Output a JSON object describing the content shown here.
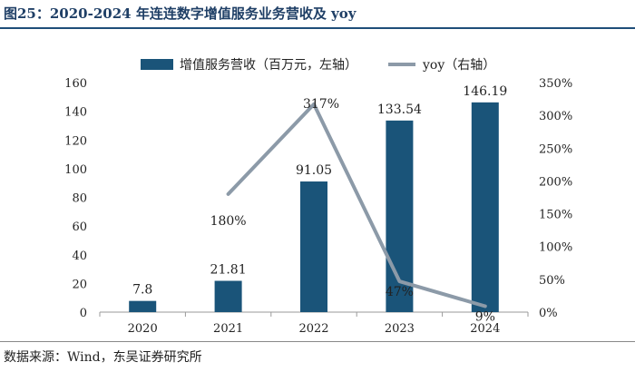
{
  "figure_title": "图25：2020-2024 年连连数字增值服务业务营收及 yoy",
  "source_note": "数据来源：Wind，东吴证券研究所",
  "colors": {
    "bar": "#1a5479",
    "line": "#8c9aa8",
    "title": "#1f3f66"
  },
  "chart_data": {
    "type": "bar",
    "categories": [
      "2020",
      "2021",
      "2022",
      "2023",
      "2024"
    ],
    "series": [
      {
        "name": "增值服务营收（百万元，左轴）",
        "kind": "bar",
        "axis": "left",
        "values": [
          7.8,
          21.81,
          91.05,
          133.54,
          146.19
        ],
        "labels": [
          "7.8",
          "21.81",
          "91.05",
          "133.54",
          "146.19"
        ]
      },
      {
        "name": "yoy（右轴）",
        "kind": "line",
        "axis": "right",
        "values": [
          null,
          180,
          317,
          47,
          9
        ],
        "labels": [
          "",
          "180%",
          "317%",
          "47%",
          "9%"
        ]
      }
    ],
    "y_left": {
      "min": 0,
      "max": 160,
      "ticks": [
        0,
        20,
        40,
        60,
        80,
        100,
        120,
        140,
        160
      ],
      "tick_labels": [
        "0",
        "20",
        "40",
        "60",
        "80",
        "100",
        "120",
        "140",
        "160"
      ]
    },
    "y_right": {
      "min": 0,
      "max": 350,
      "ticks": [
        0,
        50,
        100,
        150,
        200,
        250,
        300,
        350
      ],
      "tick_labels": [
        "0%",
        "50%",
        "100%",
        "150%",
        "200%",
        "250%",
        "300%",
        "350%"
      ]
    },
    "legend_position": "top-center",
    "grid": false
  }
}
